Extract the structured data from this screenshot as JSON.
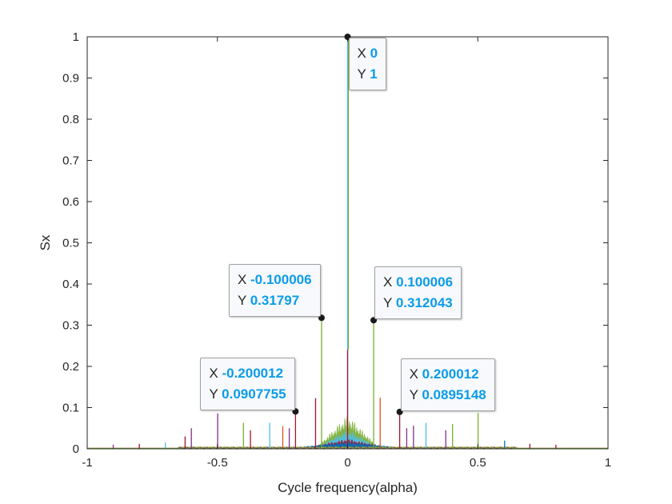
{
  "chart_data": {
    "type": "line",
    "title": "",
    "xlabel": "Cycle frequency(alpha)",
    "ylabel": "Sx",
    "xlim": [
      -1,
      1
    ],
    "ylim": [
      0,
      1
    ],
    "xticks": [
      "-1",
      "-0.5",
      "0",
      "0.5",
      "1"
    ],
    "xtick_values": [
      -1,
      -0.5,
      0,
      0.5,
      1
    ],
    "yticks": [
      "0",
      "0.1",
      "0.2",
      "0.3",
      "0.4",
      "0.5",
      "0.6",
      "0.7",
      "0.8",
      "0.9",
      "1"
    ],
    "ytick_values": [
      0,
      0.1,
      0.2,
      0.3,
      0.4,
      0.5,
      0.6,
      0.7,
      0.8,
      0.9,
      1
    ],
    "colors": {
      "blue": "#0072bd",
      "orange": "#d95319",
      "yellow": "#edb120",
      "purple": "#7e2f8e",
      "green": "#77ac30",
      "cyan": "#4dbeee",
      "red": "#a2142f"
    },
    "spikes": [
      {
        "x": -0.8,
        "y": 0.012,
        "c": "red"
      },
      {
        "x": -0.9,
        "y": 0.01,
        "c": "purple"
      },
      {
        "x": -0.7,
        "y": 0.015,
        "c": "cyan"
      },
      {
        "x": -0.624,
        "y": 0.03,
        "c": "red"
      },
      {
        "x": -0.6,
        "y": 0.05,
        "c": "purple"
      },
      {
        "x": -0.499,
        "y": 0.086,
        "c": "purple"
      },
      {
        "x": -0.4,
        "y": 0.063,
        "c": "green"
      },
      {
        "x": -0.373,
        "y": 0.045,
        "c": "red"
      },
      {
        "x": -0.299,
        "y": 0.063,
        "c": "cyan"
      },
      {
        "x": -0.249,
        "y": 0.055,
        "c": "orange"
      },
      {
        "x": -0.224,
        "y": 0.05,
        "c": "purple"
      },
      {
        "x": -0.2,
        "y": 0.0908,
        "c": "red"
      },
      {
        "x": -0.123,
        "y": 0.123,
        "c": "red"
      },
      {
        "x": -0.1,
        "y": 0.318,
        "c": "green"
      },
      {
        "x": 0,
        "y": 1.0,
        "c": "cyan"
      },
      {
        "x": 0,
        "y": 0.24,
        "c": "red"
      },
      {
        "x": 0.1,
        "y": 0.312,
        "c": "green"
      },
      {
        "x": 0.125,
        "y": 0.124,
        "c": "orange"
      },
      {
        "x": 0.2,
        "y": 0.0895,
        "c": "red"
      },
      {
        "x": 0.227,
        "y": 0.05,
        "c": "purple"
      },
      {
        "x": 0.253,
        "y": 0.056,
        "c": "purple"
      },
      {
        "x": 0.301,
        "y": 0.063,
        "c": "cyan"
      },
      {
        "x": 0.377,
        "y": 0.045,
        "c": "purple"
      },
      {
        "x": 0.403,
        "y": 0.06,
        "c": "green"
      },
      {
        "x": 0.501,
        "y": 0.087,
        "c": "green"
      },
      {
        "x": 0.603,
        "y": 0.02,
        "c": "blue"
      },
      {
        "x": 0.7,
        "y": 0.012,
        "c": "red"
      },
      {
        "x": 0.8,
        "y": 0.01,
        "c": "red"
      }
    ],
    "hump": [
      {
        "name": "green",
        "peak": 0.08,
        "width": 0.12
      },
      {
        "name": "cyan",
        "peak": 0.045,
        "width": 0.12
      },
      {
        "name": "red",
        "peak": 0.022,
        "width": 0.16
      },
      {
        "name": "blue",
        "peak": 0.015,
        "width": 0.2
      }
    ],
    "datatips": [
      {
        "x_label": "X",
        "y_label": "Y",
        "x": "0",
        "y": "1",
        "px": 0,
        "py": 1
      },
      {
        "x_label": "X",
        "y_label": "Y",
        "x": "-0.100006",
        "y": "0.31797",
        "px": -0.100006,
        "py": 0.31797
      },
      {
        "x_label": "X",
        "y_label": "Y",
        "x": "0.100006",
        "y": "0.312043",
        "px": 0.100006,
        "py": 0.312043
      },
      {
        "x_label": "X",
        "y_label": "Y",
        "x": "-0.200012",
        "y": "0.0907755",
        "px": -0.200012,
        "py": 0.0907755
      },
      {
        "x_label": "X",
        "y_label": "Y",
        "x": "0.200012",
        "y": "0.0895148",
        "px": 0.200012,
        "py": 0.0895148
      }
    ]
  }
}
